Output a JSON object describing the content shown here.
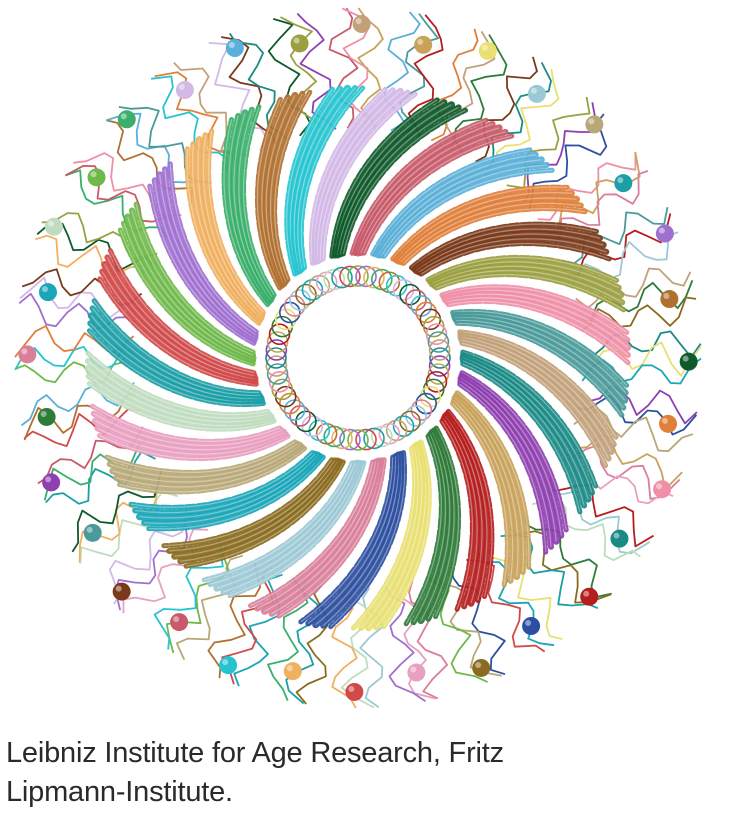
{
  "figure": {
    "description_name": "protein-ring-structure",
    "palette": [
      "#1a8a85",
      "#8e3fb0",
      "#c9a25a",
      "#b51e1e",
      "#2f7b3a",
      "#e8e070",
      "#2c4fa0",
      "#d97f9a",
      "#9cc9d6",
      "#8a6b20",
      "#1aa6b8",
      "#b8a878",
      "#e8a0c0",
      "#c0dcc0",
      "#1c9ea6",
      "#d04a4a",
      "#6fb84a",
      "#a070d0",
      "#f0b060",
      "#3aaf6a",
      "#b07030",
      "#26c4d0",
      "#d3b9e6",
      "#0f5a2a",
      "#c85a6a",
      "#5ab0d8",
      "#e07f3a",
      "#7a3a1a",
      "#9aa040",
      "#ef8fa8",
      "#4a9a9a",
      "#c2a17a"
    ]
  },
  "caption": {
    "line1": "Leibniz Institute for Age Research, Fritz",
    "line2": "Lipmann-Institute."
  }
}
